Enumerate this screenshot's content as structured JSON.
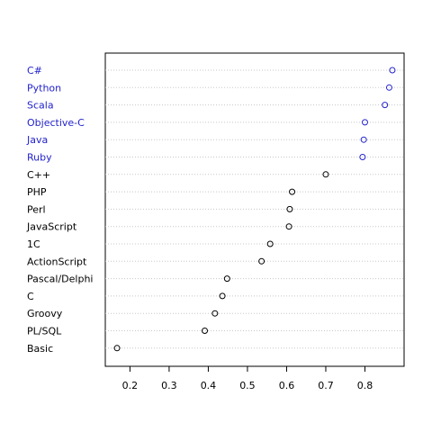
{
  "chart_data": {
    "type": "scatter",
    "subtype": "dotchart",
    "categories": [
      "C#",
      "Python",
      "Scala",
      "Objective-C",
      "Java",
      "Ruby",
      "C++",
      "PHP",
      "Perl",
      "JavaScript",
      "1C",
      "ActionScript",
      "Pascal/Delphi",
      "C",
      "Groovy",
      "PL/SQL",
      "Basic"
    ],
    "values": [
      0.87,
      0.862,
      0.851,
      0.8,
      0.797,
      0.794,
      0.7,
      0.614,
      0.608,
      0.606,
      0.558,
      0.536,
      0.448,
      0.436,
      0.417,
      0.391,
      0.167
    ],
    "highlighted_count": 6,
    "highlight_color": "#2222cc",
    "normal_color": "#000000",
    "gridline_color": "#c8c8c8",
    "xlim": [
      0.137,
      0.9
    ],
    "xticks": [
      0.2,
      0.3,
      0.4,
      0.5,
      0.6,
      0.7,
      0.8
    ],
    "xtick_labels": [
      "0.2",
      "0.3",
      "0.4",
      "0.5",
      "0.6",
      "0.7",
      "0.8"
    ],
    "grid": "horizontal dotted",
    "title": "",
    "xlabel": "",
    "ylabel": ""
  }
}
